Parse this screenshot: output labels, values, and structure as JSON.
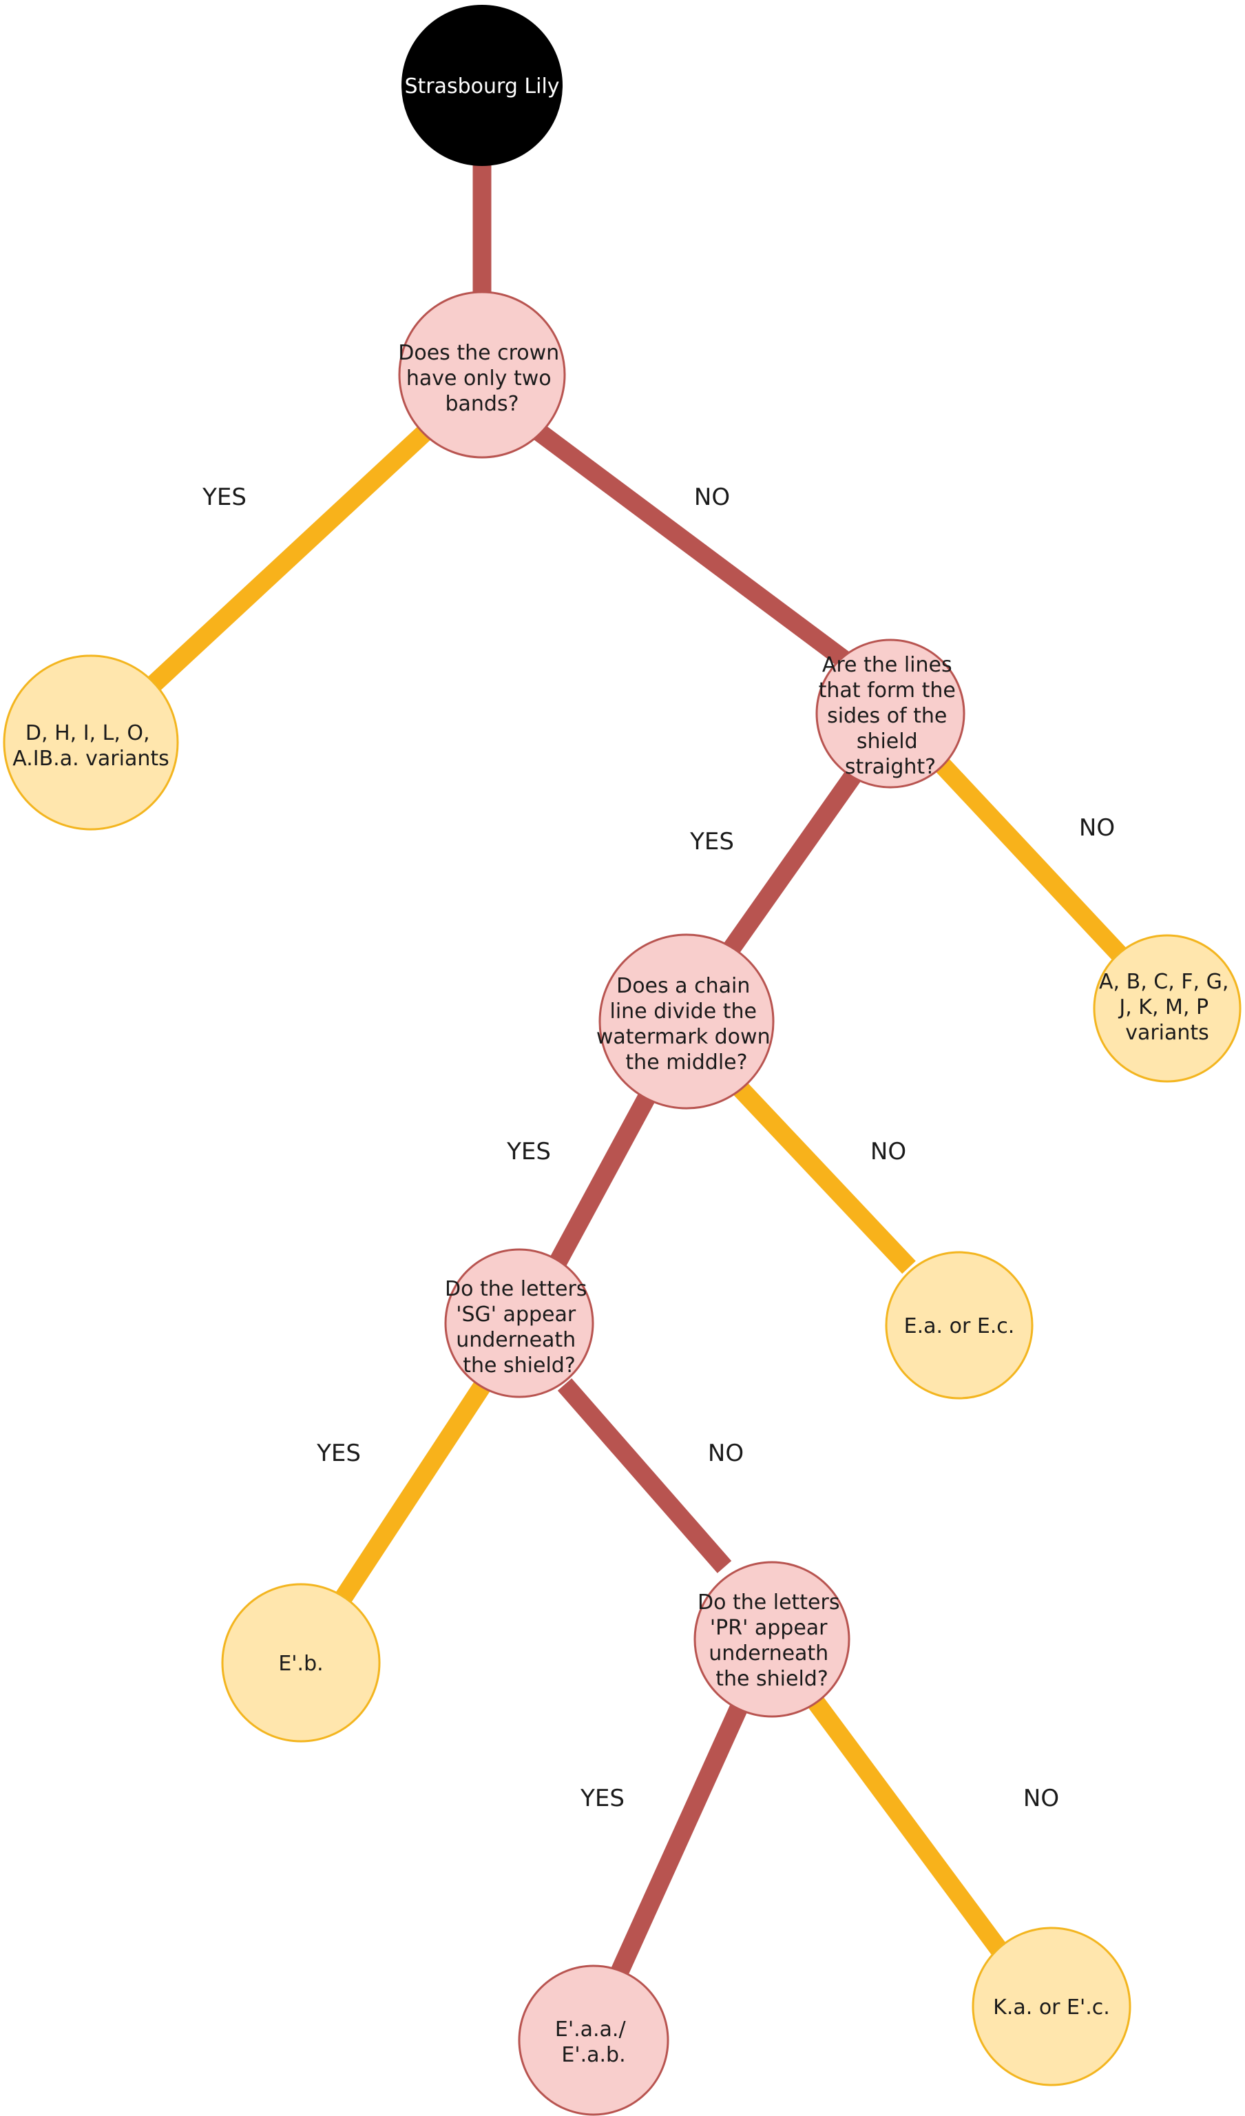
{
  "root": {
    "label": "Strasbourg Lily"
  },
  "q1": {
    "lines": [
      "Does the crown",
      "have only two",
      "bands?"
    ]
  },
  "q2": {
    "lines": [
      "Are the lines",
      "that form the",
      "sides of the",
      "shield",
      "straight?"
    ]
  },
  "q3": {
    "lines": [
      "Does a chain",
      "line divide the",
      "watermark down",
      "the middle?"
    ]
  },
  "q4": {
    "lines": [
      "Do the letters",
      "'SG' appear",
      "underneath",
      "the shield?"
    ]
  },
  "q5": {
    "lines": [
      "Do the letters",
      "'PR' appear",
      "underneath",
      "the shield?"
    ]
  },
  "r1": {
    "lines": [
      "D, H, I, L, O,",
      "A.IB.a. variants"
    ]
  },
  "r2": {
    "lines": [
      "A, B, C, F, G,",
      "J, K, M, P",
      "variants"
    ]
  },
  "r3": {
    "lines": [
      "E.a. or E.c."
    ]
  },
  "r4": {
    "lines": [
      "E'.b."
    ]
  },
  "r5": {
    "lines": [
      "E'.a.a./",
      "E'.a.b."
    ]
  },
  "r6": {
    "lines": [
      "K.a. or E'.c."
    ]
  },
  "edge_labels": {
    "q1_yes": "YES",
    "q1_no": "NO",
    "q2_yes": "YES",
    "q2_no": "NO",
    "q3_yes": "YES",
    "q3_no": "NO",
    "q4_yes": "YES",
    "q4_no": "NO",
    "q5_yes": "YES",
    "q5_no": "NO"
  },
  "colors": {
    "main_path": "#b85450",
    "leaf_path": "#f8b21b",
    "question_fill": "#f8cecc",
    "result_fill": "#ffe6ad",
    "root_fill": "#000000"
  }
}
